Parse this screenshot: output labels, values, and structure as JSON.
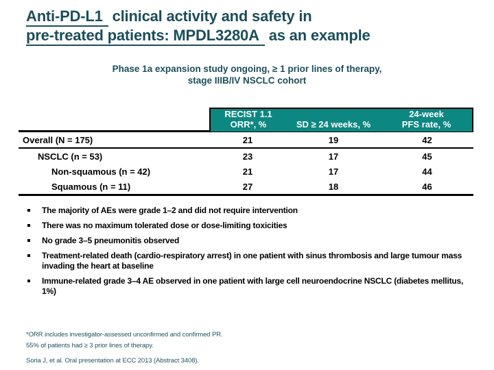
{
  "colors": {
    "title_teal": "#1b4d59",
    "table_header_teal": "#0d8781",
    "footnote_teal": "#1d5260",
    "body_text": "#000000",
    "background": "#ffffff"
  },
  "title": {
    "line1_underlined": "Anti-PD-L1",
    "line1_rest": "clinical activity and safety in",
    "line2_underlined": "pre-treated patients: MPDL3280A",
    "line2_rest": "as an example"
  },
  "subtitle": {
    "line1": "Phase 1a expansion study ongoing, ≥ 1 prior lines of therapy,",
    "line2": "stage IIIB/IV NSCLC cohort"
  },
  "table": {
    "header": {
      "col1_line1": "RECIST 1.1",
      "col1_line2": "ORR*, %",
      "col2": "SD ≥ 24 weeks, %",
      "col3_line1": "24-week",
      "col3_line2": "PFS rate, %"
    },
    "rows": [
      {
        "label": "Overall (N = 175)",
        "orr": "21",
        "sd": "19",
        "pfs": "42"
      },
      {
        "label": "NSCLC (n = 53)",
        "orr": "23",
        "sd": "17",
        "pfs": "45"
      },
      {
        "label": "Non-squamous (n = 42)",
        "orr": "21",
        "sd": "17",
        "pfs": "44"
      },
      {
        "label": "Squamous (n = 11)",
        "orr": "27",
        "sd": "18",
        "pfs": "46"
      }
    ]
  },
  "bullets": {
    "items": [
      "The majority of AEs were grade 1–2 and did not require intervention",
      "There was no maximum tolerated dose or dose-limiting toxicities",
      "No grade 3–5 pneumonitis observed",
      "Treatment-related death (cardio-respiratory arrest) in one patient with sinus thrombosis and large tumour mass invading the heart at baseline",
      "Immune-related grade 3–4 AE observed in one patient with large cell neuroendocrine NSCLC (diabetes mellitus, 1%)"
    ]
  },
  "footnotes": {
    "line1": "*ORR includes investigator-assessed unconfirmed and confirmed PR.",
    "line2": "55% of patients had ≥ 3 prior lines of therapy.",
    "source": "Soria J, et al. Oral presentation at ECC 2013 (Abstract 3408)."
  }
}
